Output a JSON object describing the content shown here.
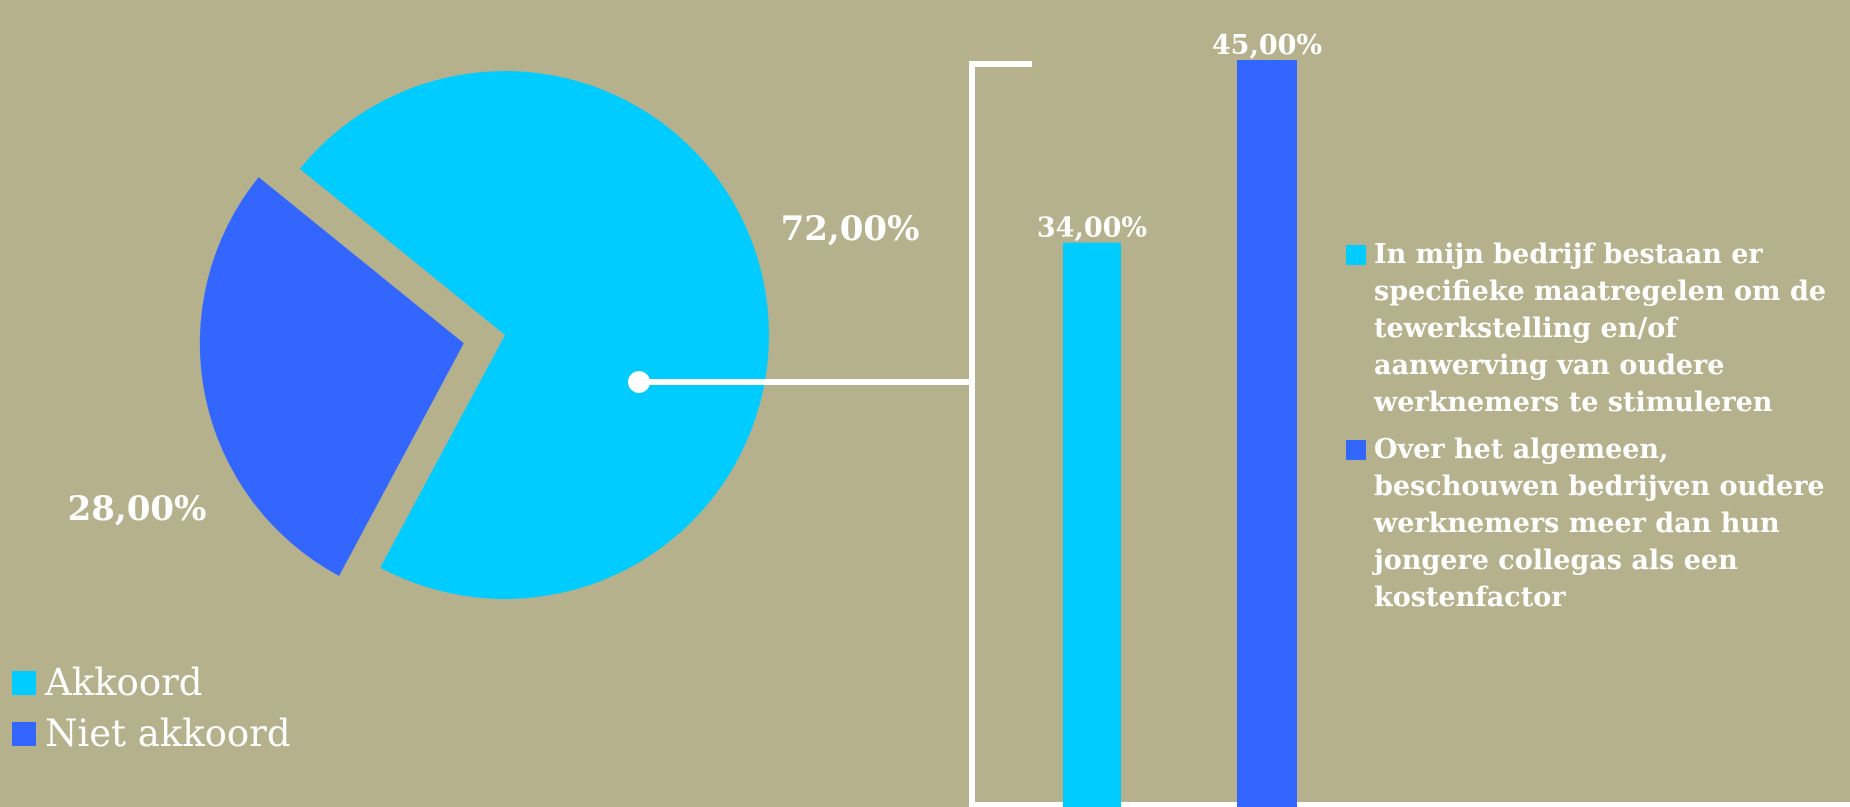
{
  "chart_data": [
    {
      "type": "pie",
      "slices": [
        {
          "label": "Akkoord",
          "value": 72,
          "display": "72,00%",
          "color": "#00ccff"
        },
        {
          "label": "Niet akkoord",
          "value": 28,
          "display": "28,00%",
          "color": "#3366ff"
        }
      ],
      "exploded": "Niet akkoord",
      "legend_position": "bottom-left"
    },
    {
      "type": "bar",
      "series": [
        {
          "name": "In mijn bedrijf bestaan er specifieke maatregelen om de tewerkstelling en/of aanwerving van oudere werknemers te stimuleren",
          "value": 34,
          "display": "34,00%",
          "color": "#00ccff"
        },
        {
          "name": "Over het algemeen, beschouwen bedrijven oudere werknemers meer dan hun jongere collegas als een kostenfactor",
          "value": 45,
          "display": "45,00%",
          "color": "#3366ff"
        }
      ],
      "ylim": [
        0,
        50
      ],
      "grid": false,
      "legend_position": "right"
    }
  ],
  "connector_color": "#ffffff"
}
